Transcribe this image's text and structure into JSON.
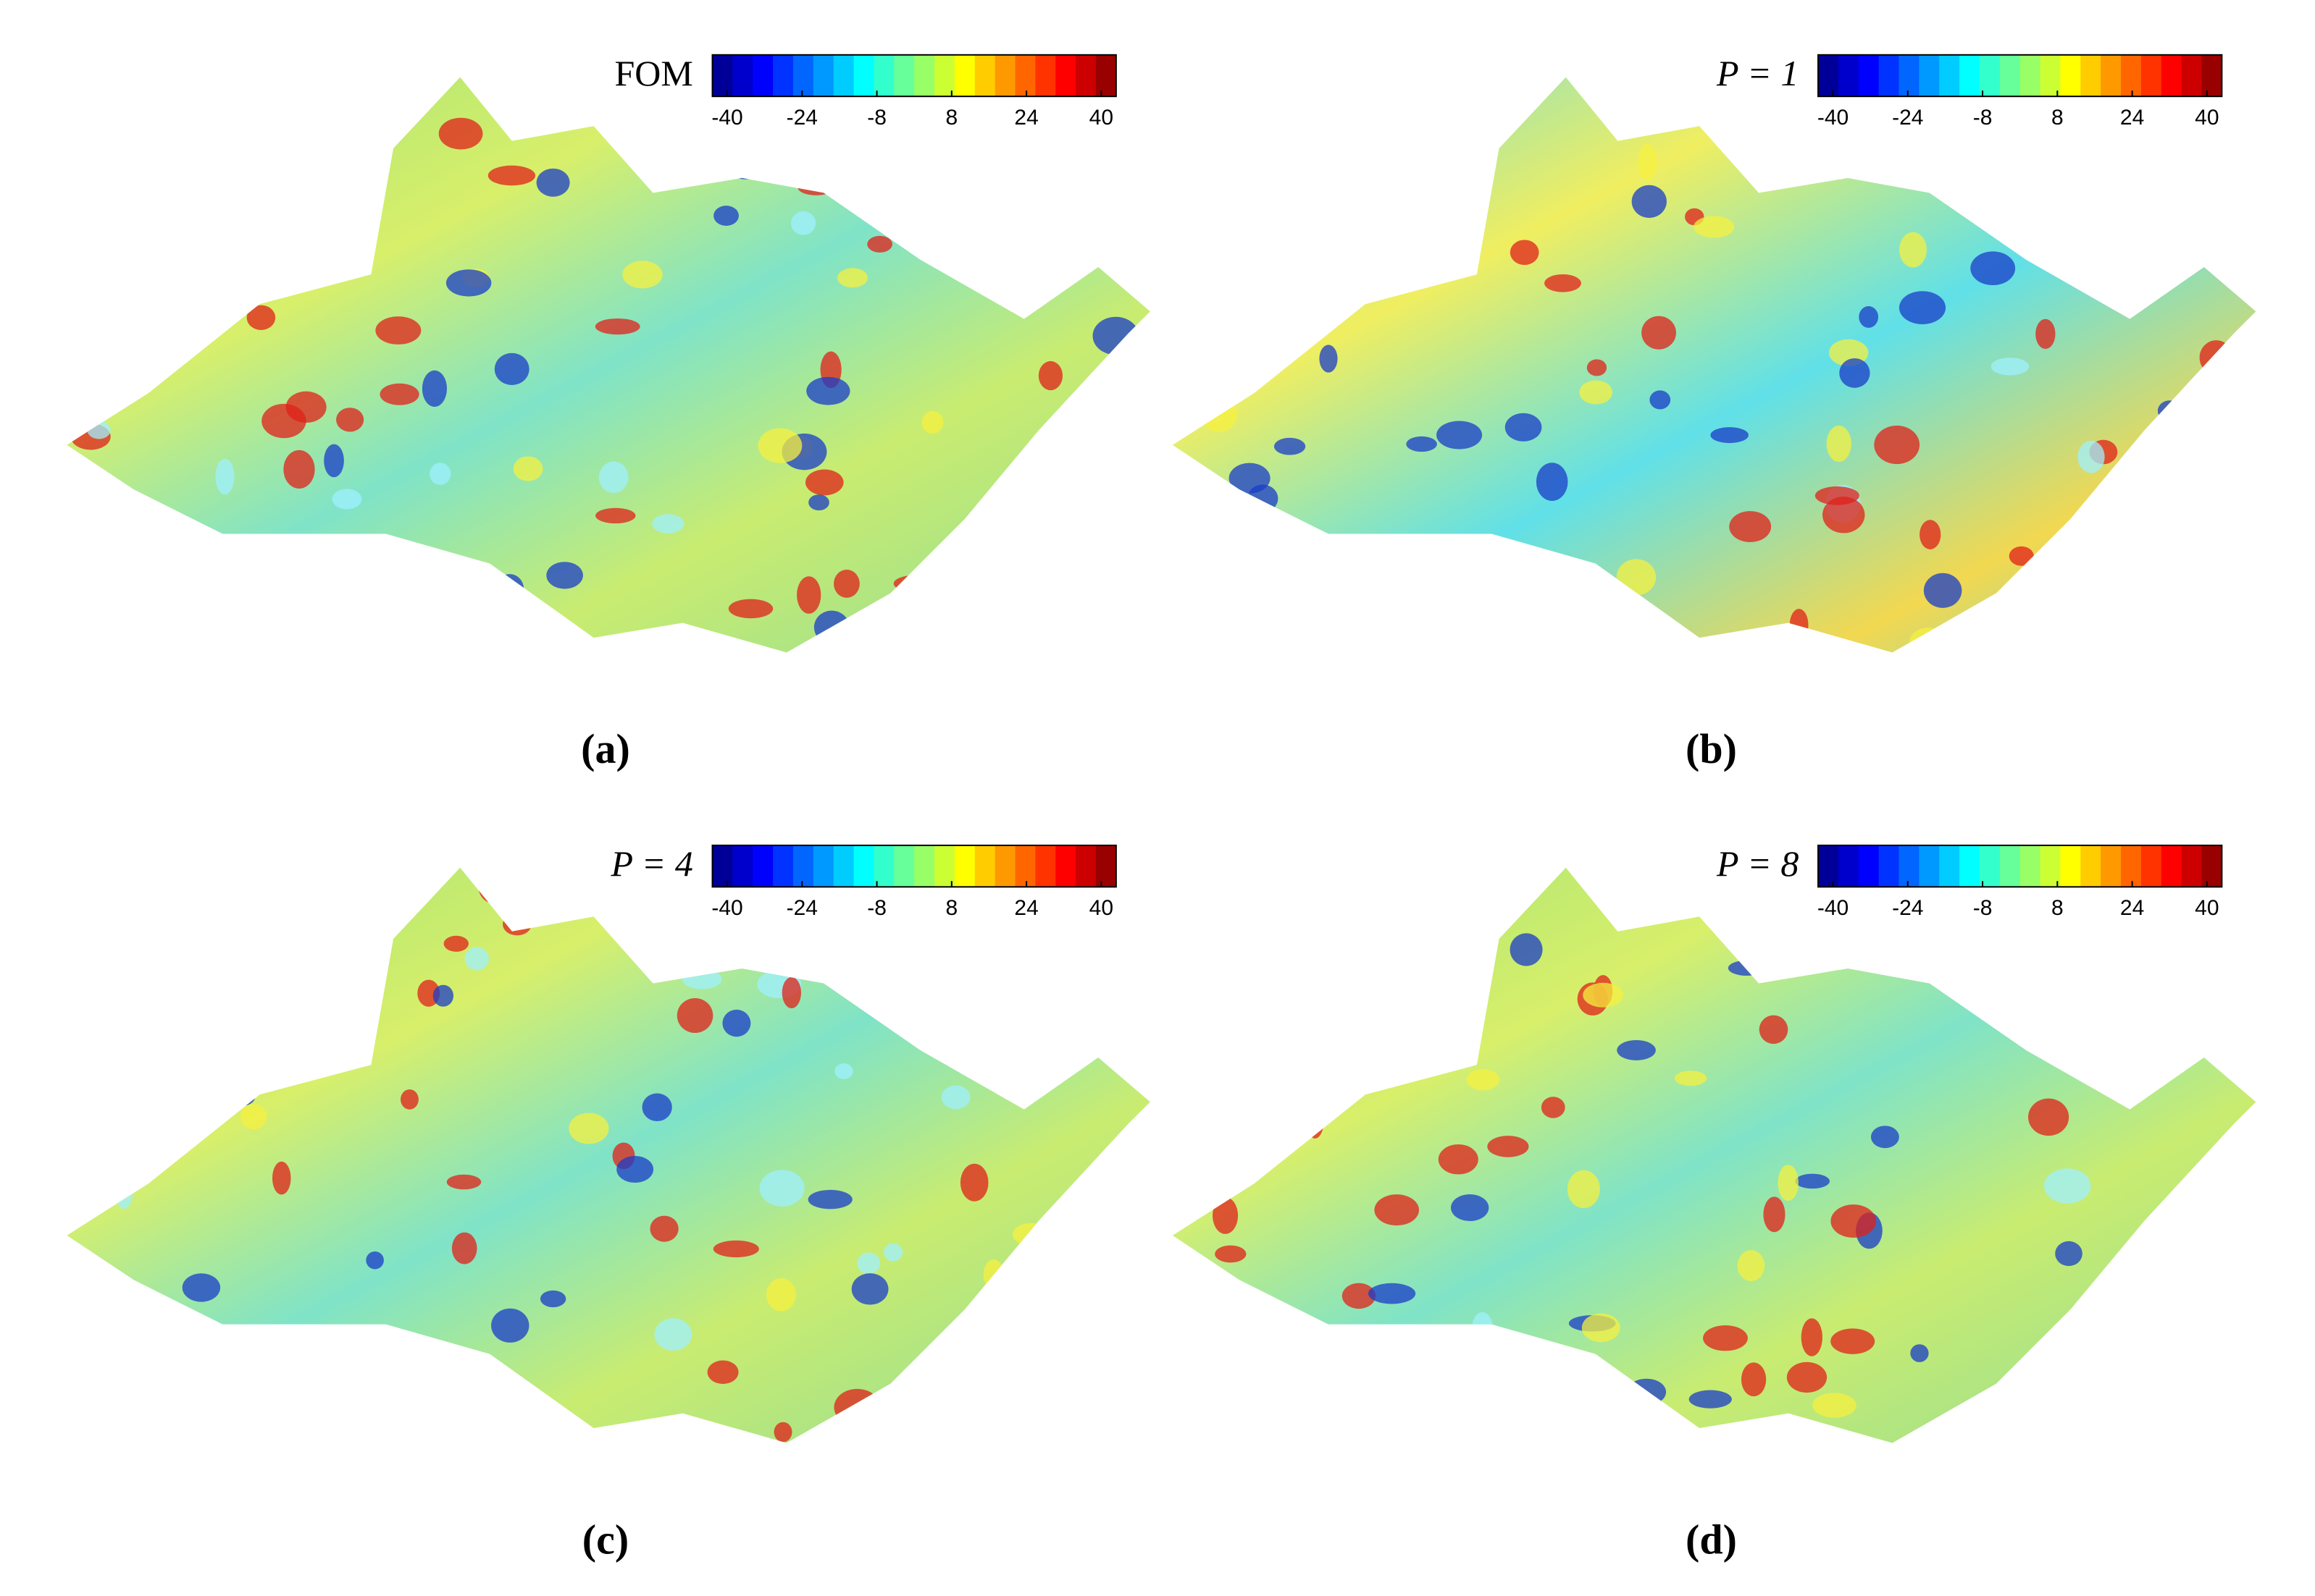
{
  "panels": [
    {
      "legend_title": "FOM",
      "colorbar_ticks": [
        -40,
        -24,
        -8,
        8,
        24,
        40
      ],
      "caption": "(a)"
    },
    {
      "legend_title": "P = 1",
      "colorbar_ticks": [
        -40,
        -24,
        -8,
        8,
        24,
        40
      ],
      "caption": "(b)"
    },
    {
      "legend_title": "P = 4",
      "colorbar_ticks": [
        -40,
        -24,
        -8,
        8,
        24,
        40
      ],
      "caption": "(c)"
    },
    {
      "legend_title": "P = 8",
      "colorbar_ticks": [
        -40,
        -24,
        -8,
        8,
        24,
        40
      ],
      "caption": "(d)"
    }
  ]
}
